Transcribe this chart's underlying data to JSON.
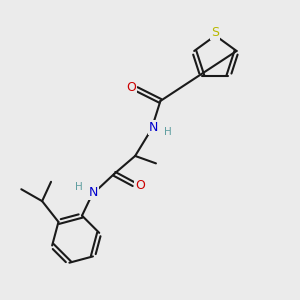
{
  "background_color": "#ebebeb",
  "bond_color": "#1a1a1a",
  "S_color": "#b8b800",
  "N_color": "#0000cc",
  "O_color": "#cc0000",
  "H_color": "#5f9ea0",
  "figsize": [
    3.0,
    3.0
  ],
  "dpi": 100,
  "xlim": [
    0,
    10
  ],
  "ylim": [
    0,
    10
  ]
}
